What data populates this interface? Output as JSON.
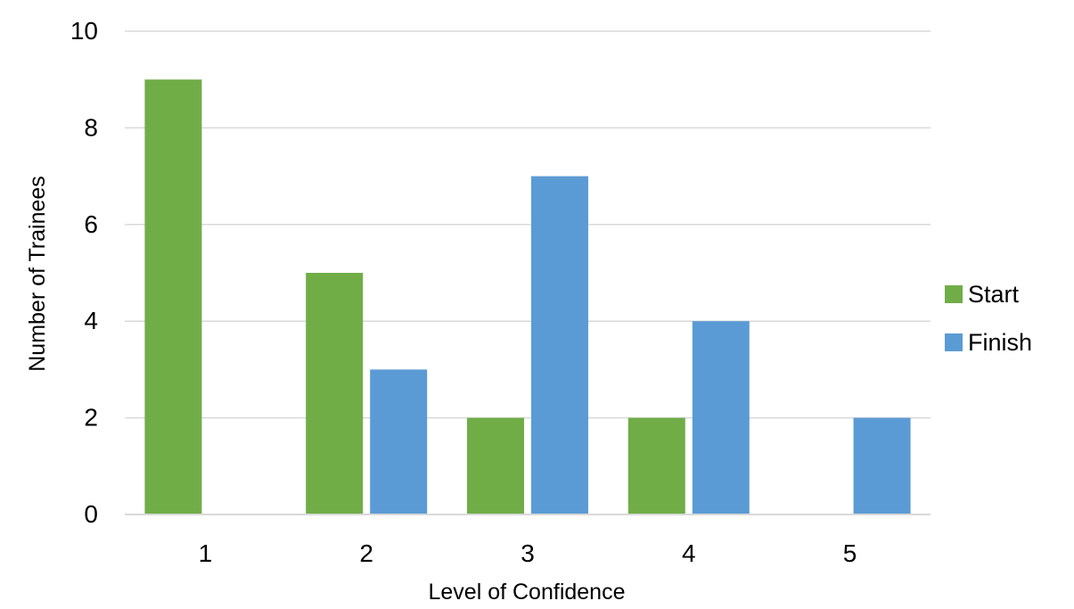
{
  "chart_data": {
    "type": "bar",
    "title": "",
    "xlabel": "Level of Confidence",
    "ylabel": "Number of Trainees",
    "categories": [
      "1",
      "2",
      "3",
      "4",
      "5"
    ],
    "series": [
      {
        "name": "Start",
        "values": [
          9,
          5,
          2,
          2,
          0
        ],
        "color": "#70AD47"
      },
      {
        "name": "Finish",
        "values": [
          0,
          3,
          7,
          4,
          2
        ],
        "color": "#5B9BD5"
      }
    ],
    "ylim": [
      0,
      10
    ],
    "yticks": [
      0,
      2,
      4,
      6,
      8,
      10
    ],
    "grid": true,
    "gridline_color": "#D9D9D9",
    "legend_position": "right"
  }
}
